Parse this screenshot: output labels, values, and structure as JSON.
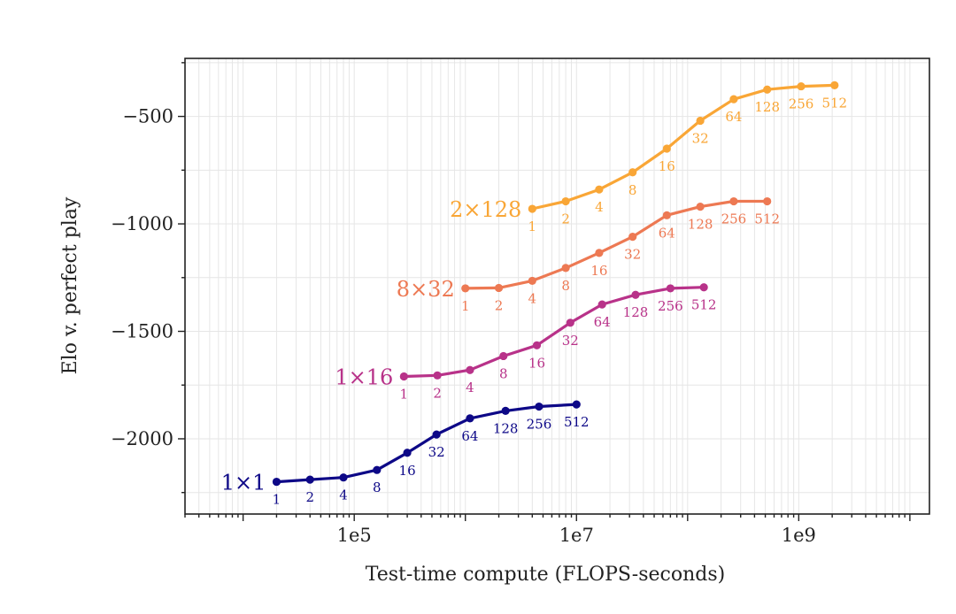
{
  "chart_data": {
    "type": "line",
    "title": "",
    "xlabel": "Test-time compute (FLOPS-seconds)",
    "ylabel": "Elo v. perfect play",
    "xscale": "log",
    "xlim": [
      3000,
      15000000000
    ],
    "ylim": [
      -2350,
      -230
    ],
    "x_major_ticks": [
      100000,
      10000000,
      1000000000
    ],
    "x_major_tick_labels": [
      "1e5",
      "1e7",
      "1e9"
    ],
    "y_major_ticks": [
      -2000,
      -1500,
      -1000,
      -500
    ],
    "y_major_tick_labels": [
      "−2000",
      "−1500",
      "−1000",
      "−500"
    ],
    "y_minor_ticks": [
      -2250,
      -1750,
      -1250,
      -750,
      -250
    ],
    "grid": true,
    "series": [
      {
        "name": "1×1",
        "color": "#0d0887",
        "x": [
          20000,
          40000,
          80000,
          160000,
          300000,
          550000,
          1100000,
          2300000,
          4600000,
          10000000
        ],
        "y": [
          -2200,
          -2190,
          -2180,
          -2145,
          -2065,
          -1980,
          -1905,
          -1870,
          -1850,
          -1840
        ],
        "point_labels": [
          "1",
          "2",
          "4",
          "8",
          "16",
          "32",
          "64",
          "128",
          "256",
          "512"
        ]
      },
      {
        "name": "1×16",
        "color": "#b83289",
        "x": [
          280000,
          560000,
          1100000,
          2200000,
          4400000,
          8800000,
          17000000,
          34000000,
          70000000,
          140000000
        ],
        "y": [
          -1710,
          -1705,
          -1680,
          -1615,
          -1565,
          -1460,
          -1375,
          -1330,
          -1300,
          -1295
        ],
        "point_labels": [
          "1",
          "2",
          "4",
          "8",
          "16",
          "32",
          "64",
          "128",
          "256",
          "512"
        ]
      },
      {
        "name": "8×32",
        "color": "#ed7953",
        "x": [
          1000000,
          2000000,
          4000000,
          8000000,
          16000000,
          32000000,
          65000000,
          130000000,
          260000000,
          520000000
        ],
        "y": [
          -1300,
          -1298,
          -1265,
          -1205,
          -1135,
          -1060,
          -960,
          -920,
          -895,
          -895
        ],
        "point_labels": [
          "1",
          "2",
          "4",
          "8",
          "16",
          "32",
          "64",
          "128",
          "256",
          "512"
        ]
      },
      {
        "name": "2×128",
        "color": "#f9a636",
        "x": [
          4000000,
          8000000,
          16000000,
          32000000,
          65000000,
          130000000,
          260000000,
          520000000,
          1050000000,
          2100000000
        ],
        "y": [
          -930,
          -895,
          -840,
          -760,
          -650,
          -520,
          -420,
          -375,
          -360,
          -355
        ],
        "point_labels": [
          "1",
          "2",
          "4",
          "8",
          "16",
          "32",
          "64",
          "128",
          "256",
          "512"
        ]
      }
    ]
  }
}
